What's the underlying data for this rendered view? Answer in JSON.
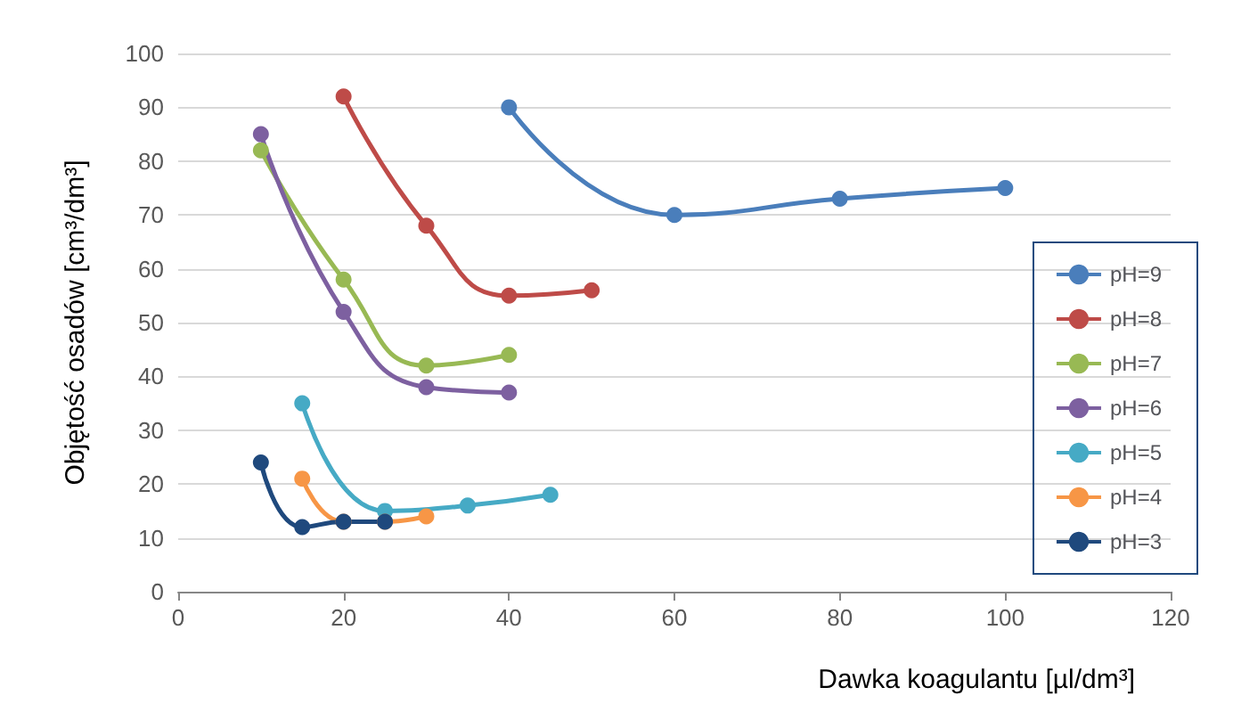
{
  "chart_data": {
    "type": "line",
    "xlabel": "Dawka koagulantu [µl/dm³]",
    "ylabel": "Objętość osadów [cm³/dm³]",
    "xlim": [
      0,
      120
    ],
    "xticks": [
      0,
      20,
      40,
      60,
      80,
      100,
      120
    ],
    "ylim": [
      0,
      100
    ],
    "yticks": [
      0,
      10,
      20,
      30,
      40,
      50,
      60,
      70,
      80,
      90,
      100
    ],
    "grid": "y",
    "legend": "right",
    "marker": "circle",
    "series": [
      {
        "name": "pH=9",
        "color": "#4a7ebb",
        "x": [
          40,
          60,
          80,
          100
        ],
        "values": [
          90,
          70,
          73,
          75
        ]
      },
      {
        "name": "pH=8",
        "color": "#be4b48",
        "x": [
          20,
          30,
          40,
          50
        ],
        "values": [
          92,
          68,
          55,
          56
        ]
      },
      {
        "name": "pH=7",
        "color": "#98b954",
        "x": [
          10,
          20,
          30,
          40
        ],
        "values": [
          82,
          58,
          42,
          44
        ]
      },
      {
        "name": "pH=6",
        "color": "#7d60a0",
        "x": [
          10,
          20,
          30,
          40
        ],
        "values": [
          85,
          52,
          38,
          37
        ]
      },
      {
        "name": "pH=5",
        "color": "#46aac5",
        "x": [
          15,
          25,
          35,
          45
        ],
        "values": [
          35,
          15,
          16,
          18
        ]
      },
      {
        "name": "pH=4",
        "color": "#f79646",
        "x": [
          15,
          20,
          25,
          30
        ],
        "values": [
          21,
          13,
          13,
          14
        ]
      },
      {
        "name": "pH=3",
        "color": "#1f497d",
        "x": [
          10,
          15,
          20,
          25
        ],
        "values": [
          24,
          12,
          13,
          13
        ]
      }
    ]
  }
}
